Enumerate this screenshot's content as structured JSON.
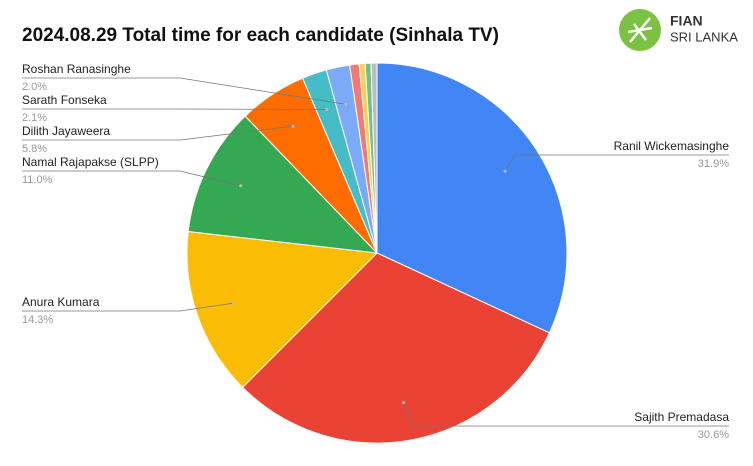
{
  "chart_data": {
    "type": "pie",
    "title": "2024.08.29 Total time for each candidate (Sinhala TV)",
    "categories": [
      "Ranil Wickemasinghe",
      "Sajith Premadasa",
      "Anura Kumara",
      "Namal Rajapakse (SLPP)",
      "Dilith Jayaweera",
      "Sarath Fonseka",
      "Roshan Ranasinghe",
      null,
      null,
      null,
      null
    ],
    "values": [
      31.9,
      30.6,
      14.3,
      11.0,
      5.8,
      2.1,
      2.0,
      0.8,
      0.5,
      0.5,
      0.5
    ],
    "value_labels": [
      "31.9%",
      "30.6%",
      "14.3%",
      "11.0%",
      "5.8%",
      "2.1%",
      "2.0%",
      null,
      null,
      null,
      null
    ],
    "colors": [
      "#4285f4",
      "#ea4335",
      "#fbbc04",
      "#34a853",
      "#ff6d01",
      "#46bdc6",
      "#7baaf7",
      "#f07b72",
      "#fcd04f",
      "#71c287",
      "#bdbdbd"
    ]
  },
  "logo": {
    "name": "FIAN",
    "subtitle": "SRI LANKA"
  }
}
